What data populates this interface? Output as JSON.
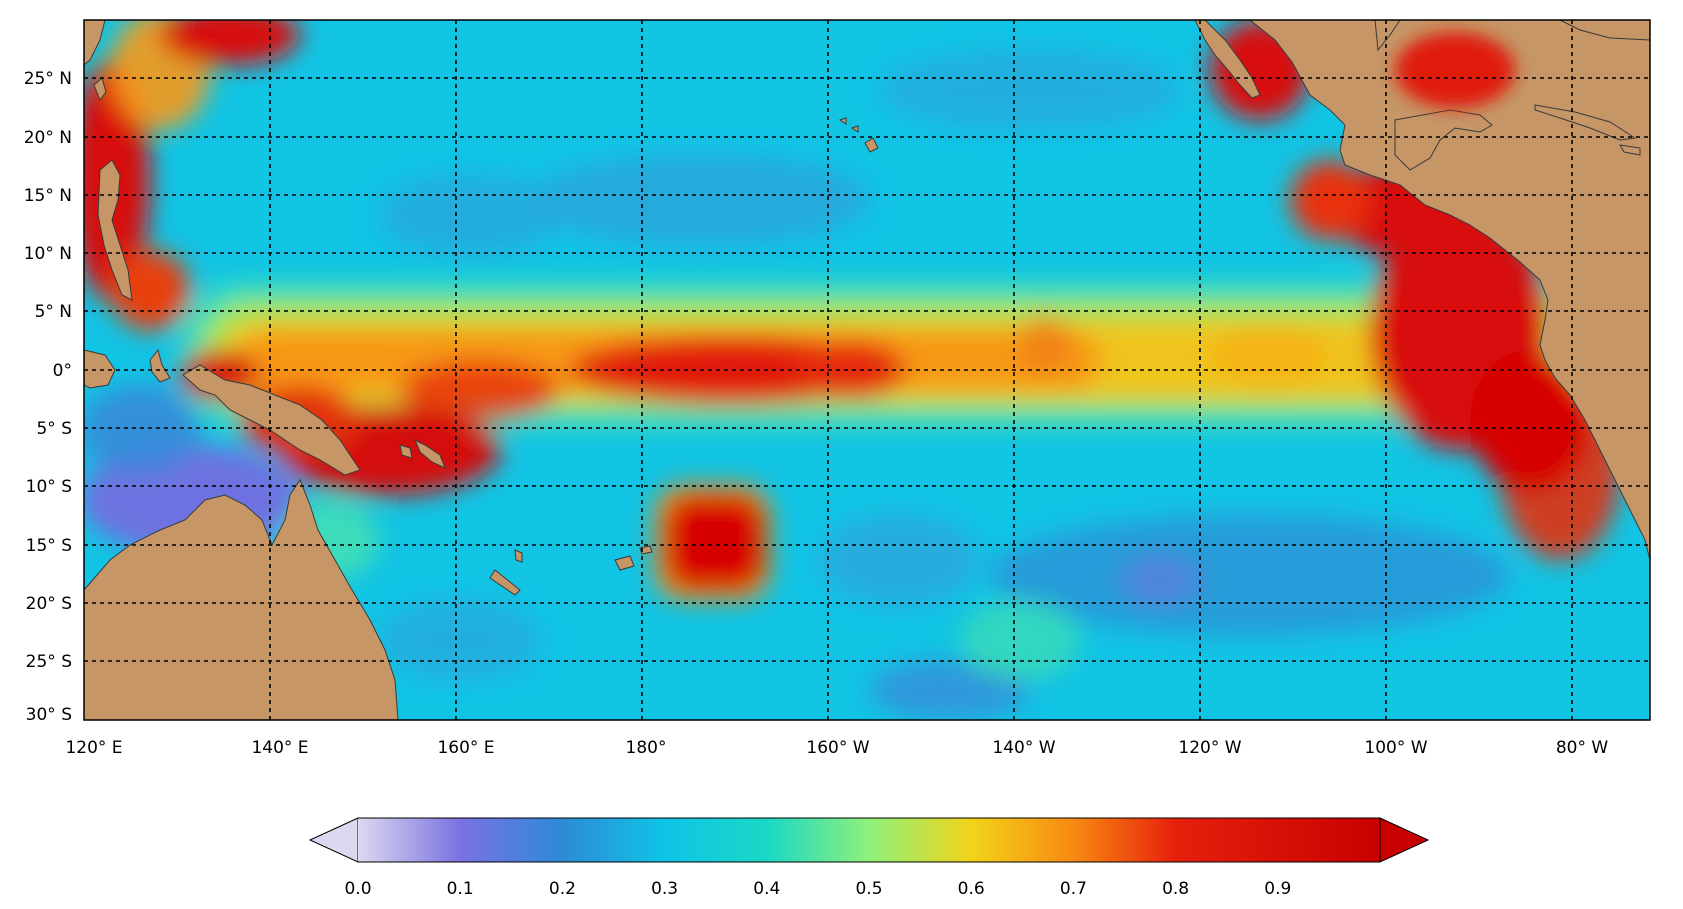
{
  "map": {
    "lon_ticks": [
      "120° E",
      "140° E",
      "160° E",
      "180°",
      "160° W",
      "140° W",
      "120° W",
      "100° W",
      "80° W"
    ],
    "lat_ticks": [
      "25° N",
      "20° N",
      "15° N",
      "10° N",
      "5° N",
      "0°",
      "5° S",
      "10° S",
      "15° S",
      "20° S",
      "25° S",
      "30° S"
    ],
    "extent": {
      "lon_min": 120,
      "lon_max": 288,
      "lat_min": -30,
      "lat_max": 30
    },
    "gridlines": true,
    "land_color": "#c69666",
    "ocean_colormap": "jet-like"
  },
  "colorbar": {
    "ticks": [
      "0.0",
      "0.1",
      "0.2",
      "0.3",
      "0.4",
      "0.5",
      "0.6",
      "0.7",
      "0.8",
      "0.9"
    ],
    "range": [
      0,
      1
    ],
    "extend": "both",
    "orientation": "horizontal",
    "placement": "bottom",
    "colors": [
      "#d8d4ef",
      "#7c74e4",
      "#2f8fd8",
      "#12c6e2",
      "#19d9c8",
      "#8ef07a",
      "#f4d21a",
      "#f78612",
      "#e0160a",
      "#c80000"
    ]
  }
}
